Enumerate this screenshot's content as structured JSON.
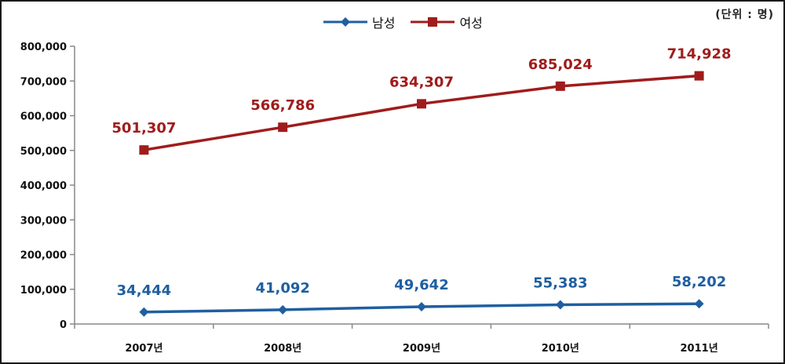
{
  "unit_label": "(단위 : 명)",
  "colors": {
    "male": "#1f5fa0",
    "female": "#a01c1c",
    "axis": "#888888"
  },
  "chart_data": {
    "type": "line",
    "categories": [
      "2007년",
      "2008년",
      "2009년",
      "2010년",
      "2011년"
    ],
    "series": [
      {
        "name": "남성",
        "values": [
          34444,
          41092,
          49642,
          55383,
          58202
        ],
        "labels": [
          "34,444",
          "41,092",
          "49,642",
          "55,383",
          "58,202"
        ],
        "marker": "diamond"
      },
      {
        "name": "여성",
        "values": [
          501307,
          566786,
          634307,
          685024,
          714928
        ],
        "labels": [
          "501,307",
          "566,786",
          "634,307",
          "685,024",
          "714,928"
        ],
        "marker": "square"
      }
    ],
    "ylim": [
      0,
      800000
    ],
    "yticks": [
      "0",
      "100,000",
      "200,000",
      "300,000",
      "400,000",
      "500,000",
      "600,000",
      "700,000",
      "800,000"
    ],
    "grid": false,
    "legend": "top-center",
    "title": "",
    "xlabel": "",
    "ylabel": ""
  }
}
